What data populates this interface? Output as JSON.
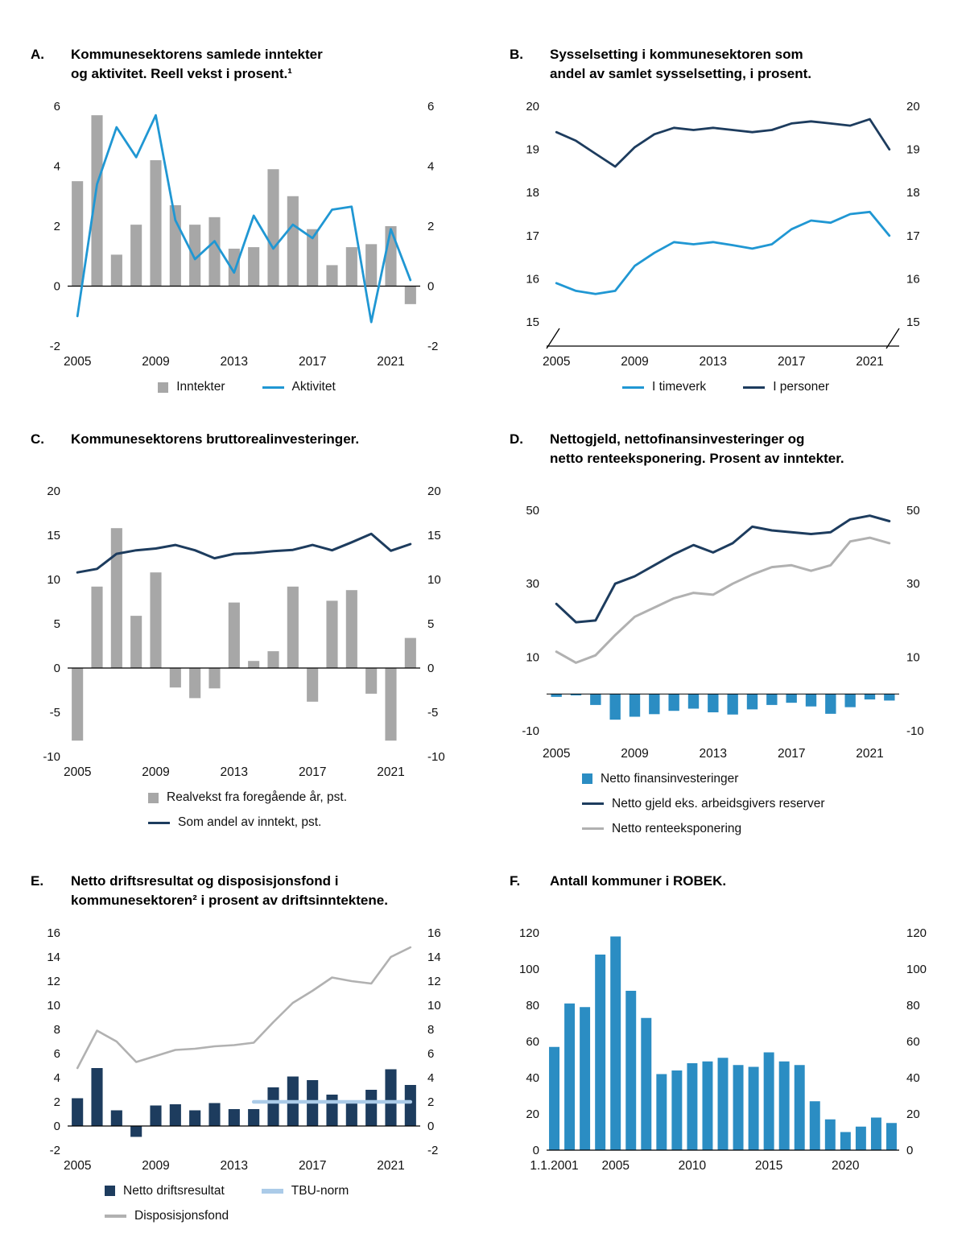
{
  "page": {
    "background": "#ffffff"
  },
  "colors": {
    "bar_gray": "#a7a7a7",
    "line_blue": "#2097d3",
    "navy": "#1d3c5e",
    "bar_blue": "#2b8dc3",
    "line_gray": "#b1b1b1",
    "tbu_blue": "#abcbe8",
    "axis_black": "#000000"
  },
  "panels": [
    {
      "letter": "A.",
      "title_lines": [
        "Kommunesektorens samlede inntekter",
        "og aktivitet. Reell vekst i prosent.¹"
      ],
      "legend": {
        "rows": [
          [
            {
              "label": "Inntekter",
              "marker": "square",
              "color": "#a7a7a7"
            },
            {
              "label": "Aktivitet",
              "marker": "line",
              "color": "#2097d3"
            }
          ]
        ]
      }
    },
    {
      "letter": "B.",
      "title_lines": [
        "Sysselsetting i kommunesektoren som",
        "andel av samlet sysselsetting, i prosent."
      ],
      "legend": {
        "rows": [
          [
            {
              "label": "I timeverk",
              "marker": "line",
              "color": "#2097d3"
            },
            {
              "label": "I personer",
              "marker": "line",
              "color": "#1d3c5e"
            }
          ]
        ]
      }
    },
    {
      "letter": "C.",
      "title_lines": [
        "Kommunesektorens bruttorealinvesteringer."
      ],
      "legend": {
        "rows": [
          [
            {
              "label": "Realvekst fra foregående år, pst.",
              "marker": "square",
              "color": "#a7a7a7"
            }
          ],
          [
            {
              "label": "Som andel av inntekt, pst.",
              "marker": "line",
              "color": "#1d3c5e"
            }
          ]
        ]
      }
    },
    {
      "letter": "D.",
      "title_lines": [
        "Nettogjeld, nettofinansinvesteringer og",
        "netto renteeksponering. Prosent av inntekter."
      ],
      "legend": {
        "rows": [
          [
            {
              "label": "Netto finansinvesteringer",
              "marker": "square",
              "color": "#2b8dc3"
            }
          ],
          [
            {
              "label": "Netto gjeld eks. arbeidsgivers reserver",
              "marker": "line",
              "color": "#1d3c5e"
            }
          ],
          [
            {
              "label": "Netto renteeksponering",
              "marker": "line",
              "color": "#b1b1b1"
            }
          ]
        ]
      }
    },
    {
      "letter": "E.",
      "title_lines": [
        "Netto driftsresultat og disposisjonsfond i",
        "kommunesektoren² i prosent av driftsinntektene."
      ],
      "legend": {
        "rows": [
          [
            {
              "label": "Netto driftsresultat",
              "marker": "square",
              "color": "#1d3c5e"
            },
            {
              "label": "TBU-norm",
              "marker": "line",
              "color": "#abcbe8",
              "thick": true
            }
          ],
          [
            {
              "label": "Disposisjonsfond",
              "marker": "line",
              "color": "#b1b1b1"
            }
          ]
        ]
      }
    },
    {
      "letter": "F.",
      "title_lines": [
        "Antall kommuner i ROBEK."
      ],
      "legend": null
    }
  ],
  "chart_data": [
    {
      "panel": "A",
      "type": "bar",
      "title": "Kommunesektorens samlede inntekter og aktivitet. Reell vekst i prosent.",
      "x": [
        2005,
        2006,
        2007,
        2008,
        2009,
        2010,
        2011,
        2012,
        2013,
        2014,
        2015,
        2016,
        2017,
        2018,
        2019,
        2020,
        2021,
        2022
      ],
      "series": [
        {
          "name": "Inntekter",
          "type": "bar",
          "color": "#a7a7a7",
          "values": [
            3.5,
            5.7,
            1.05,
            2.05,
            4.2,
            2.7,
            2.05,
            2.3,
            1.25,
            1.3,
            3.9,
            3.0,
            1.9,
            0.7,
            1.3,
            1.4,
            2.0,
            -0.6
          ]
        },
        {
          "name": "Aktivitet",
          "type": "line",
          "color": "#2097d3",
          "values": [
            -1.0,
            3.4,
            5.3,
            4.3,
            5.7,
            2.2,
            0.9,
            1.5,
            0.45,
            2.35,
            1.25,
            2.05,
            1.6,
            2.55,
            2.65,
            -1.2,
            1.9,
            0.2
          ]
        }
      ],
      "ylim": [
        -2,
        6
      ],
      "yticks": [
        -2,
        0,
        2,
        4,
        6
      ],
      "zero_line": true,
      "grid": false,
      "xticks": [
        {
          "x": 2005,
          "label": "2005"
        },
        {
          "x": 2009,
          "label": "2009"
        },
        {
          "x": 2013,
          "label": "2013"
        },
        {
          "x": 2017,
          "label": "2017"
        },
        {
          "x": 2021,
          "label": "2021"
        }
      ],
      "legend_position": "bottom"
    },
    {
      "panel": "B",
      "type": "line",
      "title": "Sysselsetting i kommunesektoren som andel av samlet sysselsetting, i prosent.",
      "x": [
        2005,
        2006,
        2007,
        2008,
        2009,
        2010,
        2011,
        2012,
        2013,
        2014,
        2015,
        2016,
        2017,
        2018,
        2019,
        2020,
        2021,
        2022
      ],
      "series": [
        {
          "name": "I timeverk",
          "type": "line",
          "color": "#2097d3",
          "values": [
            15.9,
            15.72,
            15.65,
            15.72,
            16.3,
            16.6,
            16.85,
            16.8,
            16.85,
            16.78,
            16.7,
            16.8,
            17.15,
            17.35,
            17.3,
            17.5,
            17.55,
            17.0
          ]
        },
        {
          "name": "I personer",
          "type": "line",
          "color": "#1d3c5e",
          "values": [
            19.4,
            19.2,
            18.9,
            18.6,
            19.05,
            19.35,
            19.5,
            19.45,
            19.5,
            19.45,
            19.4,
            19.45,
            19.6,
            19.65,
            19.6,
            19.55,
            19.7,
            19.0
          ]
        }
      ],
      "ylim": [
        15,
        20
      ],
      "yticks": [
        15,
        16,
        17,
        18,
        19,
        20
      ],
      "zero_line": false,
      "axis_break": true,
      "grid": false,
      "xticks": [
        {
          "x": 2005,
          "label": "2005"
        },
        {
          "x": 2009,
          "label": "2009"
        },
        {
          "x": 2013,
          "label": "2013"
        },
        {
          "x": 2017,
          "label": "2017"
        },
        {
          "x": 2021,
          "label": "2021"
        }
      ],
      "legend_position": "bottom"
    },
    {
      "panel": "C",
      "type": "bar",
      "title": "Kommunesektorens bruttorealinvesteringer.",
      "x": [
        2005,
        2006,
        2007,
        2008,
        2009,
        2010,
        2011,
        2012,
        2013,
        2014,
        2015,
        2016,
        2017,
        2018,
        2019,
        2020,
        2021,
        2022
      ],
      "series": [
        {
          "name": "Realvekst fra foregående år, pst.",
          "type": "bar",
          "color": "#a7a7a7",
          "values": [
            -8.2,
            9.2,
            15.8,
            5.9,
            10.8,
            -2.2,
            -3.4,
            -2.3,
            7.4,
            0.8,
            1.9,
            9.2,
            -3.8,
            7.6,
            8.8,
            -2.9,
            -8.2,
            3.4
          ]
        },
        {
          "name": "Som andel av inntekt, pst.",
          "type": "line",
          "color": "#1d3c5e",
          "values": [
            10.8,
            11.2,
            12.9,
            13.3,
            13.5,
            13.9,
            13.3,
            12.4,
            12.9,
            13.0,
            13.2,
            13.35,
            13.9,
            13.3,
            14.2,
            15.15,
            13.25,
            14.0
          ]
        }
      ],
      "ylim": [
        -10,
        20
      ],
      "yticks": [
        -10,
        -5,
        0,
        5,
        10,
        15,
        20
      ],
      "zero_line": true,
      "grid": false,
      "xticks": [
        {
          "x": 2005,
          "label": "2005"
        },
        {
          "x": 2009,
          "label": "2009"
        },
        {
          "x": 2013,
          "label": "2013"
        },
        {
          "x": 2017,
          "label": "2017"
        },
        {
          "x": 2021,
          "label": "2021"
        }
      ],
      "legend_position": "bottom"
    },
    {
      "panel": "D",
      "type": "bar",
      "title": "Nettogjeld, nettofinansinvesteringer og netto renteeksponering. Prosent av inntekter.",
      "x": [
        2005,
        2006,
        2007,
        2008,
        2009,
        2010,
        2011,
        2012,
        2013,
        2014,
        2015,
        2016,
        2017,
        2018,
        2019,
        2020,
        2021,
        2022
      ],
      "series": [
        {
          "name": "Netto finansinvesteringer",
          "type": "bar",
          "color": "#2b8dc3",
          "values": [
            -0.8,
            -0.4,
            -3.0,
            -7.0,
            -6.2,
            -5.5,
            -4.6,
            -4.0,
            -5.0,
            -5.6,
            -4.2,
            -3.0,
            -2.4,
            -3.4,
            -5.4,
            -3.6,
            -1.5,
            -1.8
          ]
        },
        {
          "name": "Netto gjeld eks. arbeidsgivers reserver",
          "type": "line",
          "color": "#1d3c5e",
          "values": [
            24.5,
            19.5,
            20.0,
            30.0,
            32.0,
            35.0,
            38.0,
            40.5,
            38.5,
            41.0,
            45.5,
            44.5,
            44.0,
            43.5,
            44.0,
            47.5,
            48.5,
            47.0
          ]
        },
        {
          "name": "Netto renteeksponering",
          "type": "line",
          "color": "#b1b1b1",
          "values": [
            11.5,
            8.5,
            10.5,
            16.0,
            21.0,
            23.5,
            26.0,
            27.5,
            27.0,
            30.0,
            32.5,
            34.5,
            35.0,
            33.5,
            35.0,
            41.5,
            42.5,
            41.0
          ]
        }
      ],
      "ylim": [
        -12,
        55
      ],
      "yticks": [
        -10,
        10,
        30,
        50
      ],
      "zero_line": true,
      "grid": false,
      "xticks": [
        {
          "x": 2005,
          "label": "2005"
        },
        {
          "x": 2009,
          "label": "2009"
        },
        {
          "x": 2013,
          "label": "2013"
        },
        {
          "x": 2017,
          "label": "2017"
        },
        {
          "x": 2021,
          "label": "2021"
        }
      ],
      "legend_position": "bottom"
    },
    {
      "panel": "E",
      "type": "bar",
      "title": "Netto driftsresultat og disposisjonsfond i kommunesektoren i prosent av driftsinntektene.",
      "x": [
        2005,
        2006,
        2007,
        2008,
        2009,
        2010,
        2011,
        2012,
        2013,
        2014,
        2015,
        2016,
        2017,
        2018,
        2019,
        2020,
        2021,
        2022
      ],
      "series": [
        {
          "name": "Netto driftsresultat",
          "type": "bar",
          "color": "#1d3c5e",
          "values": [
            2.3,
            4.8,
            1.3,
            -0.9,
            1.7,
            1.8,
            1.3,
            1.9,
            1.4,
            1.4,
            3.2,
            4.1,
            3.8,
            2.6,
            1.9,
            3.0,
            4.7,
            3.4
          ]
        },
        {
          "name": "Disposisjonsfond",
          "type": "line",
          "color": "#b1b1b1",
          "values": [
            4.8,
            7.9,
            7.0,
            5.3,
            5.8,
            6.3,
            6.4,
            6.6,
            6.7,
            6.9,
            8.6,
            10.2,
            11.2,
            12.3,
            12.0,
            11.8,
            14.0,
            14.8
          ]
        },
        {
          "name": "TBU-norm",
          "type": "line",
          "color": "#abcbe8",
          "values": [
            null,
            null,
            null,
            null,
            null,
            null,
            null,
            null,
            null,
            2,
            2,
            2,
            2,
            2,
            2,
            2,
            2,
            2
          ]
        }
      ],
      "ylim": [
        -2,
        16
      ],
      "yticks": [
        -2,
        0,
        2,
        4,
        6,
        8,
        10,
        12,
        14,
        16
      ],
      "zero_line": true,
      "grid": false,
      "xticks": [
        {
          "x": 2005,
          "label": "2005"
        },
        {
          "x": 2009,
          "label": "2009"
        },
        {
          "x": 2013,
          "label": "2013"
        },
        {
          "x": 2017,
          "label": "2017"
        },
        {
          "x": 2021,
          "label": "2021"
        }
      ],
      "legend_position": "bottom"
    },
    {
      "panel": "F",
      "type": "bar",
      "title": "Antall kommuner i ROBEK.",
      "x": [
        2001,
        2002,
        2003,
        2004,
        2005,
        2006,
        2007,
        2008,
        2009,
        2010,
        2011,
        2012,
        2013,
        2014,
        2015,
        2016,
        2017,
        2018,
        2019,
        2020,
        2021,
        2022,
        2023
      ],
      "series": [
        {
          "name": "Antall kommuner i ROBEK",
          "type": "bar",
          "color": "#2b8dc3",
          "values": [
            57,
            81,
            79,
            108,
            118,
            88,
            73,
            42,
            44,
            48,
            49,
            51,
            47,
            46,
            54,
            49,
            47,
            27,
            17,
            10,
            13,
            18,
            15
          ]
        }
      ],
      "ylim": [
        0,
        120
      ],
      "yticks": [
        0,
        20,
        40,
        60,
        80,
        100,
        120
      ],
      "zero_line": true,
      "grid": false,
      "xticks": [
        {
          "x": 2001,
          "label": "1.1.2001"
        },
        {
          "x": 2005,
          "label": "2005"
        },
        {
          "x": 2010,
          "label": "2010"
        },
        {
          "x": 2015,
          "label": "2015"
        },
        {
          "x": 2020,
          "label": "2020"
        }
      ],
      "legend_position": "none"
    }
  ]
}
